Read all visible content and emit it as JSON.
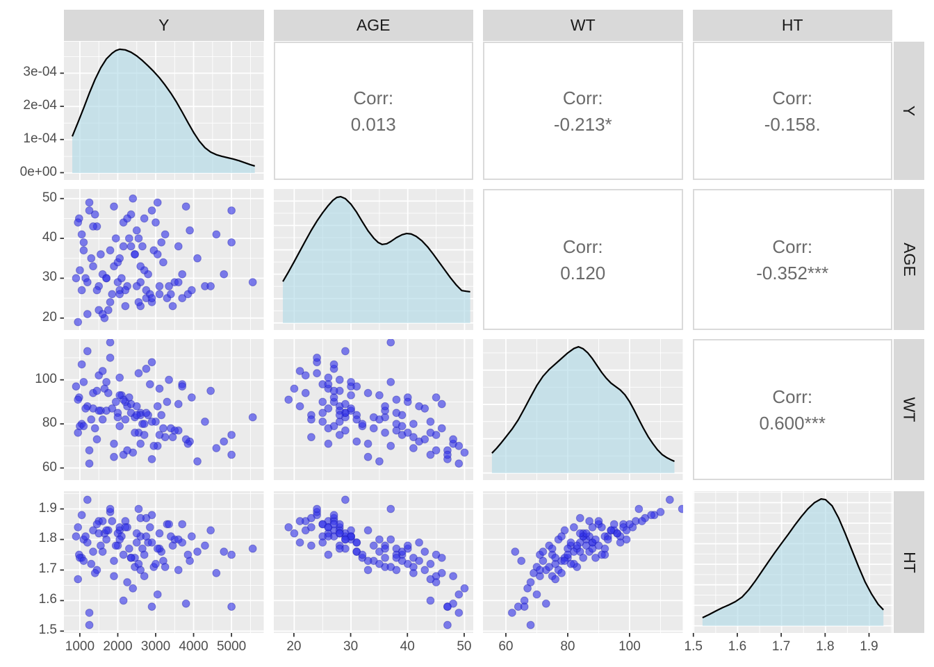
{
  "strips": {
    "top": [
      "Y",
      "AGE",
      "WT",
      "HT"
    ],
    "right": [
      "Y",
      "AGE",
      "WT",
      "HT"
    ]
  },
  "colors": {
    "panel_bg": "#ebebeb",
    "grid": "#ffffff",
    "strip_bg": "#d9d9d9",
    "point": "#3434e8",
    "point_edge": "#1414a0",
    "density_fill": "#add8e6",
    "density_line": "#000000",
    "corr_text": "#6a6a6a",
    "axis_text": "#4d4d4d",
    "tick": "#333333"
  },
  "chart_data": {
    "type": "scatterplot-matrix",
    "variables": [
      "Y",
      "AGE",
      "WT",
      "HT"
    ],
    "corr_label": "Corr:",
    "correlations": {
      "Y_AGE": "0.013",
      "Y_WT": "-0.213*",
      "Y_HT": "-0.158.",
      "AGE_WT": "0.120",
      "AGE_HT": "-0.352***",
      "WT_HT": "0.600***"
    },
    "columns": [
      {
        "var": "Y",
        "range": [
          580,
          5850
        ],
        "ticks": [
          1000,
          2000,
          3000,
          4000,
          5000
        ],
        "tick_labels": [
          "1000",
          "2000",
          "3000",
          "4000",
          "5000"
        ],
        "minor": [
          1500,
          2500,
          3500,
          4500,
          5500
        ]
      },
      {
        "var": "AGE",
        "range": [
          16.4,
          51.6
        ],
        "ticks": [
          20,
          30,
          40,
          50
        ],
        "tick_labels": [
          "20",
          "30",
          "40",
          "50"
        ],
        "minor": [
          25,
          35,
          45
        ]
      },
      {
        "var": "WT",
        "range": [
          52.6,
          117.2
        ],
        "ticks": [
          60,
          80,
          100
        ],
        "tick_labels": [
          "60",
          "80",
          "100"
        ],
        "minor": [
          70,
          90,
          110
        ]
      },
      {
        "var": "HT",
        "range": [
          1.498,
          1.953
        ],
        "ticks": [
          1.5,
          1.6,
          1.7,
          1.8,
          1.9
        ],
        "tick_labels": [
          "1.5",
          "1.6",
          "1.7",
          "1.8",
          "1.9"
        ],
        "minor": [
          1.55,
          1.65,
          1.75,
          1.85,
          1.95
        ]
      }
    ],
    "rows": [
      {
        "var": "Y",
        "type": "density-axis",
        "range": [
          -2.2e-05,
          0.000395
        ],
        "ticks": [
          0,
          0.0001,
          0.0002,
          0.0003
        ],
        "tick_labels": [
          "0e+00",
          "1e-04",
          "2e-04",
          "3e-04"
        ],
        "minor": [
          5e-05,
          0.00015,
          0.00025,
          0.00035
        ]
      },
      {
        "var": "AGE",
        "range": [
          17,
          52.4
        ],
        "ticks": [
          20,
          30,
          40,
          50
        ],
        "tick_labels": [
          "20",
          "30",
          "40",
          "50"
        ],
        "minor": [
          25,
          35,
          45
        ]
      },
      {
        "var": "WT",
        "range": [
          54.5,
          118.5
        ],
        "ticks": [
          60,
          80,
          100
        ],
        "tick_labels": [
          "60",
          "80",
          "100"
        ],
        "minor": [
          70,
          90,
          110
        ]
      },
      {
        "var": "HT",
        "range": [
          1.494,
          1.958
        ],
        "ticks": [
          1.5,
          1.6,
          1.7,
          1.8,
          1.9
        ],
        "tick_labels": [
          "1.5",
          "1.6",
          "1.7",
          "1.8",
          "1.9"
        ],
        "minor": [
          1.55,
          1.65,
          1.75,
          1.85,
          1.95
        ]
      }
    ],
    "densities": {
      "Y": [
        [
          800,
          0.00011
        ],
        [
          950,
          0.000152
        ],
        [
          1100,
          0.000195
        ],
        [
          1250,
          0.00024
        ],
        [
          1400,
          0.000281
        ],
        [
          1550,
          0.000316
        ],
        [
          1700,
          0.000343
        ],
        [
          1850,
          0.00036
        ],
        [
          1950,
          0.000368
        ],
        [
          2050,
          0.000372
        ],
        [
          2200,
          0.00037
        ],
        [
          2350,
          0.000363
        ],
        [
          2500,
          0.000352
        ],
        [
          2650,
          0.000338
        ],
        [
          2800,
          0.000322
        ],
        [
          2950,
          0.000305
        ],
        [
          3100,
          0.000286
        ],
        [
          3250,
          0.000264
        ],
        [
          3400,
          0.00024
        ],
        [
          3550,
          0.000213
        ],
        [
          3700,
          0.000183
        ],
        [
          3850,
          0.000152
        ],
        [
          4000,
          0.000122
        ],
        [
          4150,
          9.6e-05
        ],
        [
          4300,
          7.6e-05
        ],
        [
          4450,
          6.3e-05
        ],
        [
          4600,
          5.5e-05
        ],
        [
          4750,
          5e-05
        ],
        [
          4900,
          4.6e-05
        ],
        [
          5050,
          4.2e-05
        ],
        [
          5200,
          3.7e-05
        ],
        [
          5350,
          3.1e-05
        ],
        [
          5500,
          2.5e-05
        ],
        [
          5615,
          2.1e-05
        ]
      ],
      "AGE": [
        [
          18,
          0.017
        ],
        [
          19,
          0.021
        ],
        [
          20,
          0.0252
        ],
        [
          21,
          0.0295
        ],
        [
          22,
          0.0338
        ],
        [
          23,
          0.038
        ],
        [
          24,
          0.0418
        ],
        [
          25,
          0.0452
        ],
        [
          26,
          0.0482
        ],
        [
          26.8,
          0.0503
        ],
        [
          27.5,
          0.0515
        ],
        [
          28.2,
          0.0518
        ],
        [
          29,
          0.051
        ],
        [
          30,
          0.0487
        ],
        [
          31,
          0.0454
        ],
        [
          32,
          0.0415
        ],
        [
          33,
          0.0378
        ],
        [
          34,
          0.0348
        ],
        [
          34.8,
          0.033
        ],
        [
          35.5,
          0.0322
        ],
        [
          36.3,
          0.0325
        ],
        [
          37,
          0.0334
        ],
        [
          38,
          0.035
        ],
        [
          39,
          0.0362
        ],
        [
          39.8,
          0.0367
        ],
        [
          40.6,
          0.0365
        ],
        [
          41.5,
          0.0355
        ],
        [
          42.5,
          0.0337
        ],
        [
          43.5,
          0.0312
        ],
        [
          44.5,
          0.0282
        ],
        [
          45.5,
          0.025
        ],
        [
          46.5,
          0.0218
        ],
        [
          47.5,
          0.0186
        ],
        [
          48.5,
          0.0157
        ],
        [
          49.5,
          0.0133
        ],
        [
          50.3,
          0.013
        ],
        [
          51,
          0.0128
        ]
      ],
      "WT": [
        [
          55.5,
          0.0058
        ],
        [
          57,
          0.0072
        ],
        [
          58.5,
          0.0088
        ],
        [
          60,
          0.0105
        ],
        [
          62,
          0.0128
        ],
        [
          64,
          0.0155
        ],
        [
          66,
          0.0188
        ],
        [
          68,
          0.0222
        ],
        [
          70,
          0.0255
        ],
        [
          72,
          0.0282
        ],
        [
          74,
          0.0302
        ],
        [
          76,
          0.0318
        ],
        [
          78,
          0.0334
        ],
        [
          80,
          0.035
        ],
        [
          82,
          0.0363
        ],
        [
          83.5,
          0.0368
        ],
        [
          85,
          0.0362
        ],
        [
          86.5,
          0.035
        ],
        [
          88,
          0.0333
        ],
        [
          89.5,
          0.0313
        ],
        [
          91,
          0.0293
        ],
        [
          92.5,
          0.0276
        ],
        [
          94,
          0.0262
        ],
        [
          95.5,
          0.0252
        ],
        [
          97,
          0.0242
        ],
        [
          98.5,
          0.0228
        ],
        [
          100,
          0.0208
        ],
        [
          101.5,
          0.0183
        ],
        [
          103,
          0.0156
        ],
        [
          104.5,
          0.013
        ],
        [
          106,
          0.0106
        ],
        [
          107.5,
          0.0086
        ],
        [
          109,
          0.0068
        ],
        [
          110.5,
          0.0054
        ],
        [
          112,
          0.0045
        ],
        [
          113.5,
          0.0038
        ],
        [
          114.5,
          0.0034
        ]
      ],
      "HT": [
        [
          1.52,
          0.4
        ],
        [
          1.535,
          0.55
        ],
        [
          1.55,
          0.72
        ],
        [
          1.565,
          0.88
        ],
        [
          1.58,
          1.02
        ],
        [
          1.595,
          1.18
        ],
        [
          1.61,
          1.4
        ],
        [
          1.625,
          1.75
        ],
        [
          1.64,
          2.18
        ],
        [
          1.655,
          2.65
        ],
        [
          1.67,
          3.12
        ],
        [
          1.685,
          3.58
        ],
        [
          1.7,
          4.02
        ],
        [
          1.715,
          4.45
        ],
        [
          1.73,
          4.9
        ],
        [
          1.745,
          5.32
        ],
        [
          1.76,
          5.7
        ],
        [
          1.775,
          6.0
        ],
        [
          1.79,
          6.18
        ],
        [
          1.8,
          6.15
        ],
        [
          1.815,
          5.85
        ],
        [
          1.83,
          5.25
        ],
        [
          1.845,
          4.5
        ],
        [
          1.86,
          3.7
        ],
        [
          1.875,
          2.9
        ],
        [
          1.89,
          2.15
        ],
        [
          1.905,
          1.55
        ],
        [
          1.92,
          1.05
        ],
        [
          1.932,
          0.78
        ]
      ]
    },
    "density_grids": {
      "Y": {
        "major": [
          0,
          0.0001,
          0.0002,
          0.0003
        ],
        "minor": [
          5e-05,
          0.00015,
          0.00025,
          0.00035
        ]
      },
      "AGE": {
        "major": [
          0,
          0.01,
          0.02,
          0.03,
          0.04,
          0.05
        ],
        "minor": [
          0.005,
          0.015,
          0.025,
          0.035,
          0.045
        ]
      },
      "WT": {
        "major": [
          0,
          0.01,
          0.02,
          0.03
        ],
        "minor": [
          0.005,
          0.015,
          0.025,
          0.035
        ]
      },
      "HT": {
        "major": [
          0,
          1,
          2,
          3,
          4,
          5,
          6
        ],
        "minor": [
          0.5,
          1.5,
          2.5,
          3.5,
          4.5,
          5.5,
          6.5
        ]
      }
    },
    "subjects_fields": [
      "Y",
      "AGE",
      "WT",
      "HT"
    ],
    "subjects": [
      [
        2600,
        29,
        85,
        1.81
      ],
      [
        1050,
        41,
        80,
        1.74
      ],
      [
        3100,
        26,
        96,
        1.82
      ],
      [
        1900,
        48,
        71,
        1.68
      ],
      [
        4100,
        35,
        63,
        1.76
      ],
      [
        2250,
        28,
        88,
        1.84
      ],
      [
        980,
        45,
        92,
        1.75
      ],
      [
        3600,
        38,
        77,
        1.7
      ],
      [
        1500,
        22,
        102,
        1.86
      ],
      [
        2800,
        31,
        84,
        1.79
      ],
      [
        2050,
        27,
        79,
        1.83
      ],
      [
        5000,
        39,
        75,
        1.75
      ],
      [
        1250,
        47,
        68,
        1.52
      ],
      [
        3300,
        25,
        90,
        1.85
      ],
      [
        2450,
        36,
        83,
        1.71
      ],
      [
        900,
        30,
        97,
        1.81
      ],
      [
        3900,
        42,
        72,
        1.73
      ],
      [
        1700,
        30,
        86,
        1.8
      ],
      [
        2900,
        24,
        108,
        1.88
      ],
      [
        2150,
        44,
        66,
        1.6
      ],
      [
        4300,
        28,
        81,
        1.78
      ],
      [
        1350,
        33,
        94,
        1.83
      ],
      [
        3050,
        49,
        70,
        1.62
      ],
      [
        1850,
        26,
        87,
        1.86
      ],
      [
        2550,
        40,
        76,
        1.72
      ],
      [
        5560,
        29,
        83,
        1.77
      ],
      [
        1100,
        37,
        99,
        1.8
      ],
      [
        3450,
        23,
        74,
        1.78
      ],
      [
        2350,
        46,
        89,
        1.74
      ],
      [
        1600,
        31,
        82,
        1.76
      ],
      [
        2750,
        27,
        105,
        1.87
      ],
      [
        4600,
        41,
        69,
        1.69
      ],
      [
        950,
        19,
        91,
        1.84
      ],
      [
        3200,
        34,
        78,
        1.73
      ],
      [
        2000,
        29,
        85,
        1.82
      ],
      [
        1450,
        43,
        73,
        1.7
      ],
      [
        3700,
        25,
        98,
        1.85
      ],
      [
        2650,
        38,
        80,
        1.77
      ],
      [
        1200,
        21,
        88,
        1.79
      ],
      [
        2900,
        47,
        64,
        1.58
      ],
      [
        2100,
        30,
        93,
        1.81
      ],
      [
        3850,
        26,
        71,
        1.75
      ],
      [
        1550,
        36,
        86,
        1.78
      ],
      [
        2400,
        50,
        67,
        1.64
      ],
      [
        4450,
        28,
        95,
        1.83
      ],
      [
        1000,
        32,
        79,
        1.74
      ],
      [
        3150,
        39,
        84,
        1.76
      ],
      [
        1800,
        24,
        110,
        1.89
      ],
      [
        2700,
        45,
        75,
        1.68
      ],
      [
        2200,
        27,
        90,
        1.86
      ],
      [
        1300,
        35,
        82,
        1.72
      ],
      [
        3500,
        29,
        77,
        1.8
      ],
      [
        2500,
        42,
        88,
        1.79
      ],
      [
        1650,
        20,
        96,
        1.82
      ],
      [
        2950,
        37,
        70,
        1.71
      ],
      [
        2050,
        26,
        101,
        1.84
      ],
      [
        3800,
        48,
        73,
        1.59
      ],
      [
        1150,
        30,
        87,
        1.81
      ],
      [
        2600,
        23,
        84,
        1.87
      ],
      [
        2300,
        40,
        92,
        1.77
      ],
      [
        1900,
        33,
        65,
        1.73
      ],
      [
        3350,
        28,
        100,
        1.85
      ],
      [
        1400,
        46,
        78,
        1.69
      ],
      [
        2750,
        25,
        85,
        1.81
      ],
      [
        2150,
        38,
        91,
        1.75
      ],
      [
        4800,
        31,
        72,
        1.76
      ],
      [
        1050,
        27,
        107,
        1.88
      ],
      [
        3000,
        44,
        81,
        1.72
      ],
      [
        1750,
        22,
        94,
        1.83
      ],
      [
        2450,
        36,
        76,
        1.74
      ],
      [
        3600,
        29,
        89,
        1.8
      ],
      [
        1250,
        49,
        62,
        1.56
      ],
      [
        2850,
        26,
        98,
        1.84
      ],
      [
        2000,
        34,
        83,
        1.78
      ],
      [
        1500,
        28,
        86,
        1.82
      ],
      [
        3250,
        41,
        74,
        1.71
      ],
      [
        2550,
        24,
        103,
        1.9
      ],
      [
        1100,
        39,
        79,
        1.73
      ],
      [
        3950,
        27,
        92,
        1.81
      ],
      [
        2250,
        45,
        68,
        1.66
      ],
      [
        1700,
        30,
        99,
        1.83
      ],
      [
        2900,
        25,
        81,
        1.79
      ],
      [
        1350,
        43,
        87,
        1.76
      ],
      [
        3100,
        28,
        75,
        1.77
      ],
      [
        2050,
        35,
        93,
        1.8
      ],
      [
        5000,
        47,
        66,
        1.58
      ],
      [
        1600,
        21,
        104,
        1.86
      ],
      [
        2700,
        32,
        80,
        1.75
      ],
      [
        2350,
        38,
        85,
        1.74
      ],
      [
        1200,
        29,
        113,
        1.93
      ],
      [
        3400,
        26,
        78,
        1.81
      ],
      [
        1950,
        40,
        90,
        1.78
      ],
      [
        2600,
        33,
        71,
        1.7
      ],
      [
        1450,
        27,
        95,
        1.85
      ],
      [
        3050,
        36,
        88,
        1.77
      ],
      [
        2200,
        23,
        82,
        1.84
      ],
      [
        3700,
        31,
        97,
        1.79
      ],
      [
        950,
        44,
        76,
        1.67
      ],
      [
        2500,
        28,
        84,
        1.82
      ],
      [
        1800,
        37,
        117,
        1.9
      ]
    ]
  }
}
